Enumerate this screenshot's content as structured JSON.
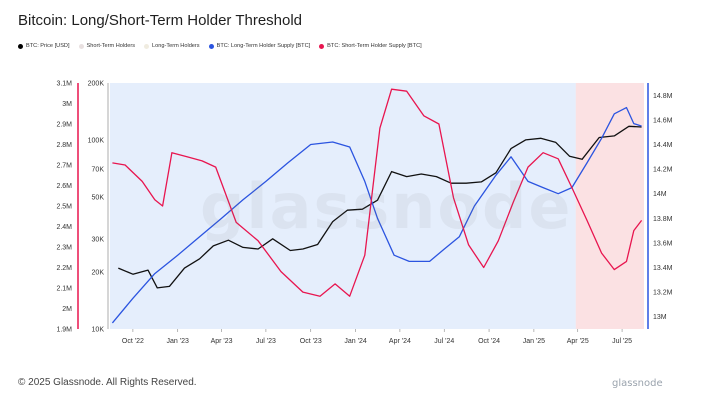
{
  "header": {
    "title": "Bitcoin: Long/Short-Term Holder Threshold"
  },
  "legend": [
    {
      "label": "BTC: Price [USD]",
      "color": "#000000"
    },
    {
      "label": "Short-Term Holders",
      "color": "#e8e0e0"
    },
    {
      "label": "Long-Term Holders",
      "color": "#f0ece0"
    },
    {
      "label": "BTC: Long-Term Holder Supply [BTC]",
      "color": "#2b54e0"
    },
    {
      "label": "BTC: Short-Term Holder Supply [BTC]",
      "color": "#e8154f"
    }
  ],
  "watermark": "glassnode",
  "footer": {
    "copyright": "© 2025 Glassnode. All Rights Reserved.",
    "brand": "glassnode"
  },
  "colors": {
    "price": "#111111",
    "lth": "#2b54e0",
    "sth": "#e8154f",
    "lth_fill": "#cfe0fa",
    "sth_fill": "#f8c9cc",
    "grid": "#e6e6e6"
  },
  "chart_data": {
    "type": "line",
    "title": "Bitcoin: Long/Short-Term Holder Threshold",
    "x_ticks": [
      "Oct '22",
      "Jan '23",
      "Apr '23",
      "Jul '23",
      "Oct '23",
      "Jan '24",
      "Apr '24",
      "Jul '24",
      "Oct '24",
      "Jan '25",
      "Apr '25",
      "Jul '25"
    ],
    "axes": {
      "sth_supply": {
        "side": "left-outer",
        "ticks": [
          "3.1M",
          "3M",
          "2.9M",
          "2.8M",
          "2.7M",
          "2.6M",
          "2.5M",
          "2.4M",
          "2.3M",
          "2.2M",
          "2.1M",
          "2M",
          "1.9M"
        ],
        "ylim": [
          1900000,
          3100000
        ]
      },
      "price": {
        "side": "left-inner",
        "scale": "log",
        "ticks": [
          "200K",
          "100K",
          "70K",
          "50K",
          "30K",
          "20K",
          "10K"
        ],
        "ylim": [
          10000,
          200000
        ]
      },
      "lth_supply": {
        "side": "right",
        "ticks": [
          "14.8M",
          "14.6M",
          "14.4M",
          "14.2M",
          "14M",
          "13.8M",
          "13.6M",
          "13.4M",
          "13.2M",
          "13M"
        ],
        "ylim": [
          12900000,
          14900000
        ]
      }
    },
    "regions": [
      {
        "name": "Long-Term Holders",
        "x_range": [
          "2022-08-15",
          "2025-03-28"
        ],
        "color": "#cfe0fa"
      },
      {
        "name": "Short-Term Holders",
        "x_range": [
          "2025-03-28",
          "2025-08-15"
        ],
        "color": "#f8c9cc"
      }
    ],
    "series": [
      {
        "name": "BTC: Price [USD]",
        "axis": "price",
        "x": [
          "2022-09-01",
          "2022-10-01",
          "2022-11-01",
          "2022-11-20",
          "2022-12-15",
          "2023-01-15",
          "2023-02-15",
          "2023-03-15",
          "2023-04-15",
          "2023-05-15",
          "2023-06-15",
          "2023-07-15",
          "2023-08-20",
          "2023-09-15",
          "2023-10-15",
          "2023-11-15",
          "2023-12-15",
          "2024-01-15",
          "2024-02-15",
          "2024-03-15",
          "2024-04-15",
          "2024-05-15",
          "2024-06-15",
          "2024-07-15",
          "2024-08-15",
          "2024-09-15",
          "2024-10-15",
          "2024-11-15",
          "2024-12-15",
          "2025-01-15",
          "2025-02-15",
          "2025-03-15",
          "2025-04-10",
          "2025-05-15",
          "2025-06-15",
          "2025-07-15",
          "2025-08-10"
        ],
        "values": [
          21000,
          19500,
          20500,
          16500,
          16800,
          21000,
          23500,
          27500,
          29500,
          27000,
          26500,
          30000,
          26000,
          26500,
          28000,
          37000,
          42500,
          43000,
          48000,
          68000,
          64000,
          66000,
          64000,
          59000,
          59000,
          60000,
          67000,
          90000,
          100000,
          102000,
          97000,
          82000,
          79000,
          103000,
          105000,
          118000,
          117000
        ]
      },
      {
        "name": "BTC: Long-Term Holder Supply [BTC]",
        "axis": "lth_supply",
        "x": [
          "2022-08-20",
          "2022-10-01",
          "2022-11-15",
          "2023-01-01",
          "2023-02-15",
          "2023-04-01",
          "2023-05-15",
          "2023-07-01",
          "2023-08-15",
          "2023-10-01",
          "2023-11-15",
          "2023-12-20",
          "2024-01-20",
          "2024-02-15",
          "2024-03-20",
          "2024-04-20",
          "2024-06-01",
          "2024-07-01",
          "2024-08-01",
          "2024-09-01",
          "2024-10-15",
          "2024-11-15",
          "2024-12-20",
          "2025-01-20",
          "2025-02-20",
          "2025-03-20",
          "2025-04-20",
          "2025-05-20",
          "2025-06-15",
          "2025-07-10",
          "2025-07-25",
          "2025-08-10"
        ],
        "values": [
          12950000,
          13150000,
          13350000,
          13500000,
          13650000,
          13800000,
          13950000,
          14100000,
          14250000,
          14400000,
          14420000,
          14380000,
          14100000,
          13800000,
          13500000,
          13450000,
          13450000,
          13550000,
          13650000,
          13900000,
          14150000,
          14300000,
          14100000,
          14050000,
          14000000,
          14050000,
          14250000,
          14450000,
          14650000,
          14700000,
          14570000,
          14550000
        ]
      },
      {
        "name": "BTC: Short-Term Holder Supply [BTC]",
        "axis": "sth_supply",
        "x": [
          "2022-08-20",
          "2022-09-15",
          "2022-10-20",
          "2022-11-15",
          "2022-12-01",
          "2022-12-20",
          "2023-01-20",
          "2023-02-20",
          "2023-03-20",
          "2023-05-01",
          "2023-06-15",
          "2023-08-01",
          "2023-09-15",
          "2023-10-20",
          "2023-11-20",
          "2023-12-20",
          "2024-01-20",
          "2024-02-20",
          "2024-03-15",
          "2024-04-15",
          "2024-05-20",
          "2024-06-20",
          "2024-07-20",
          "2024-08-20",
          "2024-09-20",
          "2024-10-20",
          "2024-11-20",
          "2024-12-20",
          "2025-01-20",
          "2025-02-20",
          "2025-03-20",
          "2025-04-20",
          "2025-05-20",
          "2025-06-15",
          "2025-07-10",
          "2025-07-25",
          "2025-08-10"
        ],
        "values": [
          2710000,
          2700000,
          2620000,
          2530000,
          2500000,
          2760000,
          2740000,
          2720000,
          2690000,
          2420000,
          2330000,
          2180000,
          2080000,
          2060000,
          2120000,
          2060000,
          2260000,
          2880000,
          3070000,
          3060000,
          2940000,
          2900000,
          2540000,
          2310000,
          2200000,
          2330000,
          2520000,
          2690000,
          2760000,
          2730000,
          2590000,
          2430000,
          2270000,
          2190000,
          2230000,
          2380000,
          2430000
        ]
      }
    ]
  }
}
